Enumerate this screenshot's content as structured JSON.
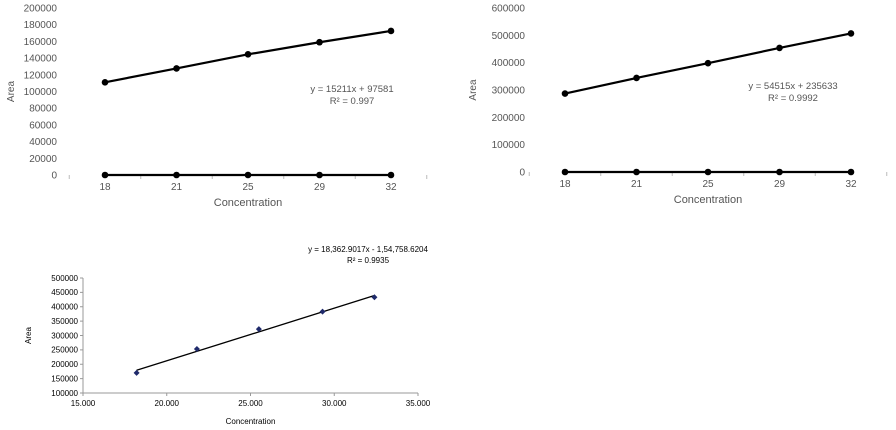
{
  "chart_data": [
    {
      "type": "line",
      "xlabel": "Concentration",
      "ylabel": "Area",
      "categories": [
        "18",
        "21",
        "25",
        "29",
        "32"
      ],
      "ylim": [
        0,
        200000
      ],
      "yticks": [
        "0",
        "20000",
        "40000",
        "60000",
        "80000",
        "100000",
        "120000",
        "140000",
        "160000",
        "180000",
        "200000"
      ],
      "series": [
        {
          "values": [
            111000,
            127600,
            144500,
            159000,
            172500
          ]
        },
        {
          "values": [
            0,
            0,
            0,
            0,
            0
          ]
        }
      ],
      "annotation": {
        "equation": "y = 15211x + 97581",
        "r2": "R² = 0.997"
      },
      "grid": false
    },
    {
      "type": "line",
      "xlabel": "Concentration",
      "ylabel": "Area",
      "categories": [
        "18",
        "21",
        "25",
        "29",
        "32"
      ],
      "ylim": [
        0,
        600000
      ],
      "yticks": [
        "0",
        "100000",
        "200000",
        "300000",
        "400000",
        "500000",
        "600000"
      ],
      "series": [
        {
          "values": [
            287000,
            344000,
            398000,
            454000,
            507000
          ]
        },
        {
          "values": [
            0,
            0,
            0,
            0,
            0
          ]
        }
      ],
      "annotation": {
        "equation": "y = 54515x + 235633",
        "r2": "R² = 0.9992"
      },
      "grid": false
    },
    {
      "type": "scatter",
      "xlabel": "Concentration",
      "ylabel": "Area",
      "xlim": [
        15,
        35
      ],
      "ylim": [
        100000,
        500000
      ],
      "xticks": [
        "15.000",
        "20.000",
        "25.000",
        "30.000",
        "35.000"
      ],
      "yticks": [
        "100000",
        "150000",
        "200000",
        "250000",
        "300000",
        "350000",
        "400000",
        "450000",
        "500000"
      ],
      "points": [
        {
          "x": 18.2,
          "y": 170000
        },
        {
          "x": 21.8,
          "y": 253000
        },
        {
          "x": 25.5,
          "y": 322000
        },
        {
          "x": 29.3,
          "y": 383000
        },
        {
          "x": 32.4,
          "y": 433000
        }
      ],
      "trendline": {
        "x": [
          18.2,
          32.4
        ],
        "y": [
          179000,
          439000
        ]
      },
      "annotation": {
        "equation": "y = 18,362.9017x - 1,54,758.6204",
        "r2": "R² = 0.9935"
      },
      "grid": false
    }
  ]
}
